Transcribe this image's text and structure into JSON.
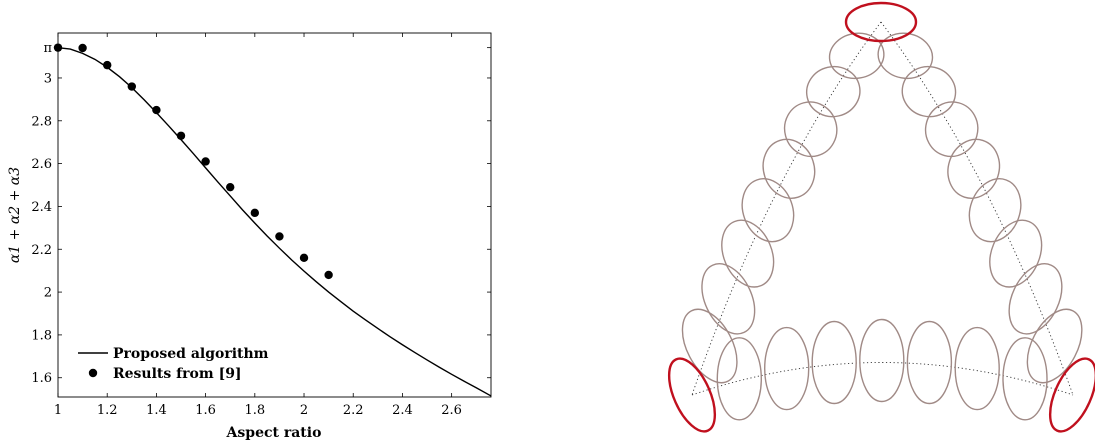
{
  "chart_data": {
    "type": "line",
    "xlabel": "Aspect ratio",
    "ylabel": "α1 + α2 + α3",
    "xlim": [
      1,
      2.76
    ],
    "ylim": [
      1.51,
      3.21
    ],
    "x_ticks": [
      {
        "value": 1,
        "label": "1"
      },
      {
        "value": 1.2,
        "label": "1.2"
      },
      {
        "value": 1.4,
        "label": "1.4"
      },
      {
        "value": 1.6,
        "label": "1.6"
      },
      {
        "value": 1.8,
        "label": "1.8"
      },
      {
        "value": 2,
        "label": "2"
      },
      {
        "value": 2.2,
        "label": "2.2"
      },
      {
        "value": 2.4,
        "label": "2.4"
      },
      {
        "value": 2.6,
        "label": "2.6"
      }
    ],
    "y_ticks": [
      {
        "value": 1.6,
        "label": "1.6"
      },
      {
        "value": 1.8,
        "label": "1.8"
      },
      {
        "value": 2,
        "label": "2"
      },
      {
        "value": 2.2,
        "label": "2.2"
      },
      {
        "value": 2.4,
        "label": "2.4"
      },
      {
        "value": 2.6,
        "label": "2.6"
      },
      {
        "value": 2.8,
        "label": "2.8"
      },
      {
        "value": 3,
        "label": "3"
      },
      {
        "value": 3.14159,
        "label": "π"
      }
    ],
    "grid": false,
    "legend_position": "bottom-left",
    "series": [
      {
        "name": "Proposed algorithm",
        "style": "line",
        "color": "#000000",
        "points": [
          [
            1.0,
            3.1416
          ],
          [
            1.05,
            3.135
          ],
          [
            1.1,
            3.115
          ],
          [
            1.15,
            3.087
          ],
          [
            1.2,
            3.05
          ],
          [
            1.25,
            3.006
          ],
          [
            1.3,
            2.955
          ],
          [
            1.35,
            2.898
          ],
          [
            1.4,
            2.838
          ],
          [
            1.45,
            2.776
          ],
          [
            1.5,
            2.712
          ],
          [
            1.55,
            2.647
          ],
          [
            1.6,
            2.58
          ],
          [
            1.65,
            2.514
          ],
          [
            1.7,
            2.449
          ],
          [
            1.75,
            2.384
          ],
          [
            1.8,
            2.322
          ],
          [
            1.85,
            2.262
          ],
          [
            1.9,
            2.205
          ],
          [
            1.95,
            2.15
          ],
          [
            2.0,
            2.098
          ],
          [
            2.05,
            2.048
          ],
          [
            2.1,
            2.0
          ],
          [
            2.15,
            1.955
          ],
          [
            2.2,
            1.911
          ],
          [
            2.25,
            1.87
          ],
          [
            2.3,
            1.83
          ],
          [
            2.35,
            1.791
          ],
          [
            2.4,
            1.754
          ],
          [
            2.45,
            1.718
          ],
          [
            2.5,
            1.683
          ],
          [
            2.55,
            1.649
          ],
          [
            2.6,
            1.616
          ],
          [
            2.65,
            1.584
          ],
          [
            2.7,
            1.553
          ],
          [
            2.76,
            1.515
          ]
        ]
      },
      {
        "name": "Results from [9]",
        "style": "markers",
        "color": "#000000",
        "points": [
          [
            1.0,
            3.1416
          ],
          [
            1.1,
            3.14
          ],
          [
            1.2,
            3.06
          ],
          [
            1.3,
            2.96
          ],
          [
            1.4,
            2.85
          ],
          [
            1.5,
            2.73
          ],
          [
            1.6,
            2.61
          ],
          [
            1.7,
            2.49
          ],
          [
            1.8,
            2.37
          ],
          [
            1.9,
            2.26
          ],
          [
            2.0,
            2.16
          ],
          [
            2.1,
            2.08
          ]
        ]
      }
    ]
  },
  "ellipse_diagram": {
    "highlight_color": "#c0101e",
    "ellipse_color": "#a08a86",
    "guide_color": "#333333"
  }
}
